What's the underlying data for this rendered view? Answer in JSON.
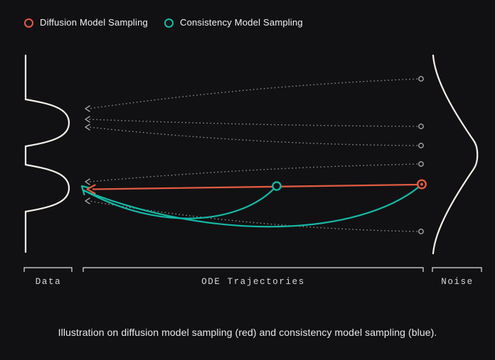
{
  "colors": {
    "background": "#111113",
    "red": "#e15b41",
    "teal": "#16b9a7",
    "distribution_curve": "#f5f1e8",
    "dotted_trajectory": "#8a8a8a",
    "trajectory_marker": "#9d9d9d",
    "bracket": "#e3e3e3",
    "axis_label": "#d8d8d8",
    "caption": "#e9e9e9"
  },
  "legend": {
    "items": [
      {
        "label": "Diffusion Model Sampling",
        "color": "#e15b41",
        "icon": "ring-icon"
      },
      {
        "label": "Consistency Model Sampling",
        "color": "#16b9a7",
        "icon": "ring-icon"
      }
    ]
  },
  "axis_labels": {
    "data": "Data",
    "ode": "ODE Trajectories",
    "noise": "Noise"
  },
  "caption": "Illustration on diffusion model sampling (red) and consistency model sampling (blue).",
  "diagram": {
    "left_distribution": "bimodal data density, modes at y=173 and y=265",
    "right_distribution": "gaussian noise density, mode at y=215",
    "trajectories": [
      {
        "from": [
          592,
          111
        ],
        "to": [
          120,
          153
        ],
        "bow": -6
      },
      {
        "from": [
          592,
          178
        ],
        "to": [
          120,
          168
        ],
        "bow": 2
      },
      {
        "from": [
          592,
          205
        ],
        "to": [
          120,
          179
        ],
        "bow": 6
      },
      {
        "from": [
          592,
          231
        ],
        "to": [
          120,
          256
        ],
        "bow": -4
      },
      {
        "from": [
          592,
          326
        ],
        "to": [
          120,
          283
        ],
        "bow": 9
      }
    ],
    "diffusion_path": {
      "start": [
        593,
        259
      ],
      "end": [
        122,
        266
      ]
    },
    "consistency_jumps": [
      {
        "start": [
          593,
          259
        ],
        "end": [
          115,
          262
        ]
      },
      {
        "start": [
          389,
          262
        ],
        "end": [
          115,
          262
        ]
      }
    ]
  }
}
